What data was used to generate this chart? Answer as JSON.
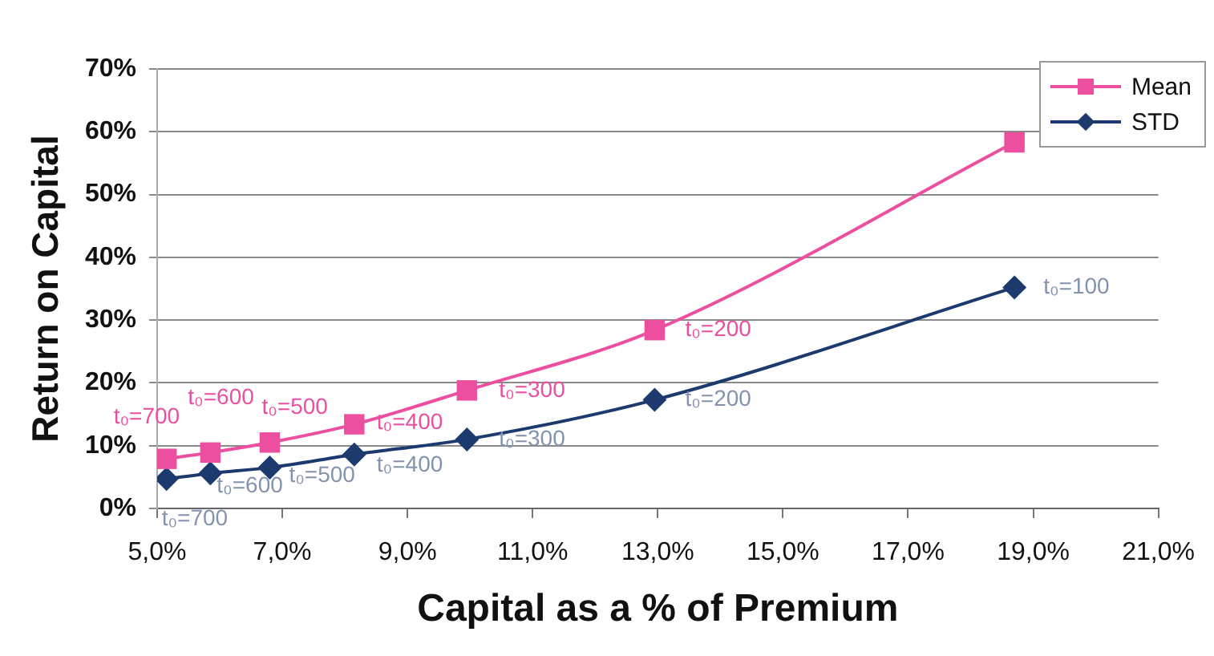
{
  "chart_data": {
    "type": "line",
    "xlabel": "Capital as a % of Premium",
    "ylabel": "Return on Capital",
    "x": [
      5.15,
      5.85,
      6.8,
      8.15,
      9.95,
      12.95,
      18.7
    ],
    "series": [
      {
        "name": "Mean",
        "color": "#ec4fa0",
        "marker": "square",
        "values": [
          7.9,
          8.9,
          10.5,
          13.4,
          18.8,
          28.4,
          58.3
        ]
      },
      {
        "name": "STD",
        "color": "#1d3a6e",
        "marker": "diamond",
        "values": [
          4.7,
          5.6,
          6.5,
          8.6,
          11.0,
          17.3,
          35.2
        ]
      }
    ],
    "xlim": [
      5,
      21
    ],
    "xticks": [
      {
        "value": 5,
        "label": "5,0%"
      },
      {
        "value": 7,
        "label": "7,0%"
      },
      {
        "value": 9,
        "label": "9,0%"
      },
      {
        "value": 11,
        "label": "11,0%"
      },
      {
        "value": 13,
        "label": "13,0%"
      },
      {
        "value": 15,
        "label": "15,0%"
      },
      {
        "value": 17,
        "label": "17,0%"
      },
      {
        "value": 19,
        "label": "19,0%"
      },
      {
        "value": 21,
        "label": "21,0%"
      }
    ],
    "ylim": [
      0,
      70
    ],
    "yticks": [
      {
        "value": 0,
        "label": "0%"
      },
      {
        "value": 10,
        "label": "10%"
      },
      {
        "value": 20,
        "label": "20%"
      },
      {
        "value": 30,
        "label": "30%"
      },
      {
        "value": 40,
        "label": "40%"
      },
      {
        "value": 50,
        "label": "50%"
      },
      {
        "value": 60,
        "label": "60%"
      },
      {
        "value": 70,
        "label": "70%"
      }
    ],
    "grid": "y",
    "legend": "top right",
    "line_style": "solid",
    "annotations": [
      {
        "text": "t₀=700",
        "x": 5.15,
        "y": 7.9
      },
      {
        "text": "t₀=600",
        "x": 5.85,
        "y": 8.9
      },
      {
        "text": "t₀=500",
        "x": 6.8,
        "y": 10.5
      },
      {
        "text": "t₀=400",
        "x": 8.15,
        "y": 13.4
      },
      {
        "text": "t₀=300",
        "x": 9.95,
        "y": 18.8
      },
      {
        "text": "t₀=200",
        "x": 12.95,
        "y": 28.4
      },
      {
        "text": "t₀=700",
        "x": 5.15,
        "y": 4.7
      },
      {
        "text": "t₀=600",
        "x": 5.85,
        "y": 5.6
      },
      {
        "text": "t₀=500",
        "x": 6.8,
        "y": 6.5
      },
      {
        "text": "t₀=400",
        "x": 8.15,
        "y": 8.6
      },
      {
        "text": "t₀=300",
        "x": 9.95,
        "y": 11.0
      },
      {
        "text": "t₀=200",
        "x": 12.95,
        "y": 17.3
      },
      {
        "text": "t₀=100",
        "x": 18.7,
        "y": 35.2
      }
    ]
  }
}
